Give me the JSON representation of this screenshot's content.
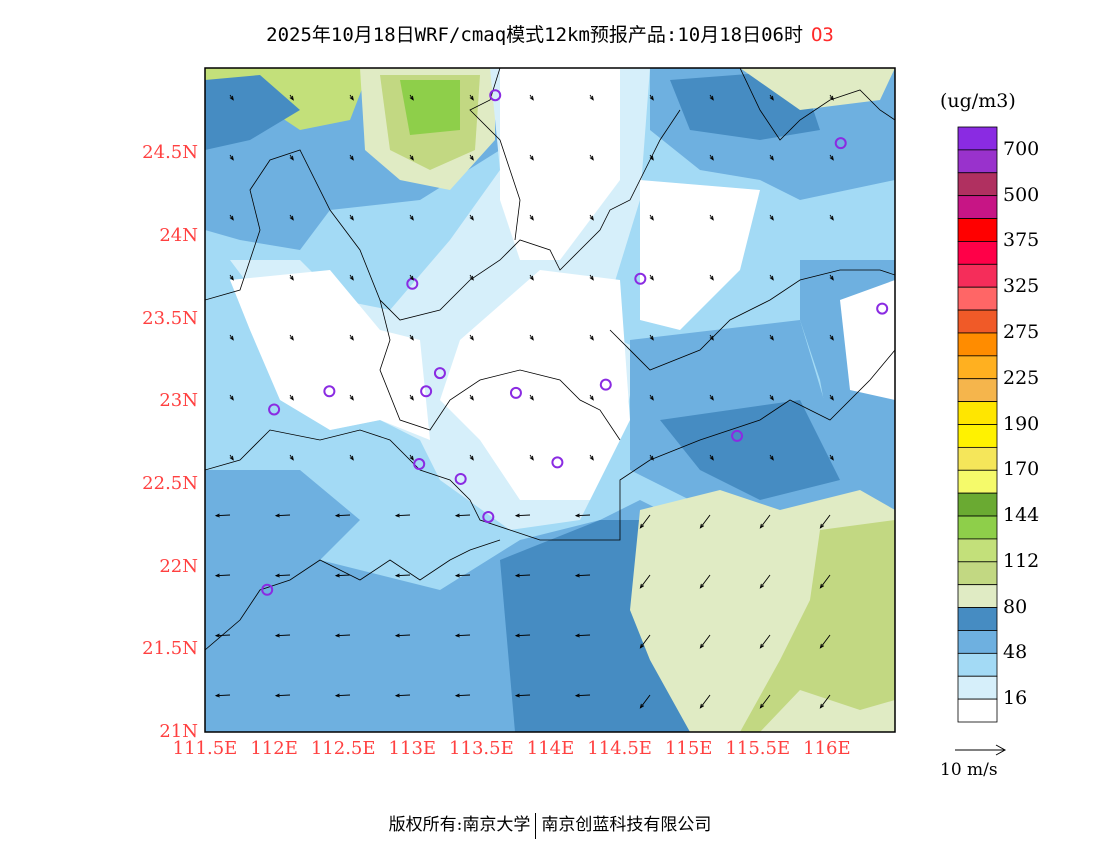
{
  "title": {
    "text": "2025年10月18日WRF/cmaq模式12km预报产品:10月18日06时",
    "species": "O3"
  },
  "colorbar": {
    "unit": "(ug/m3)",
    "colors": [
      "#8a2be2",
      "#9932cc",
      "#b03060",
      "#c71585",
      "#ff0000",
      "#ff0048",
      "#f52d5a",
      "#ff6666",
      "#f05a28",
      "#ff8c00",
      "#ffb020",
      "#f5b54c",
      "#ffe600",
      "#fff200",
      "#f5e65a",
      "#f5fa6a",
      "#6aaa32",
      "#8ecf4a",
      "#c3e07a",
      "#c2d882",
      "#e0ebc4",
      "#468cc2",
      "#6eb0e0",
      "#a3daf5",
      "#d6effa",
      "#ffffff"
    ],
    "labels": [
      "700",
      "500",
      "375",
      "325",
      "275",
      "225",
      "190",
      "170",
      "144",
      "112",
      "80",
      "48",
      "16"
    ]
  },
  "axes": {
    "x_labels": [
      "111.5E",
      "112E",
      "112.5E",
      "113E",
      "113.5E",
      "114E",
      "114.5E",
      "115E",
      "115.5E",
      "116E"
    ],
    "y_labels": [
      "24.5N",
      "24N",
      "23.5N",
      "23N",
      "22.5N",
      "22N",
      "21.5N",
      "21N"
    ]
  },
  "wind_legend": {
    "label": "10 m/s"
  },
  "footer": {
    "left": "版权所有:南京大学",
    "right": "南京创蓝科技有限公司"
  },
  "stations": [
    [
      112.0,
      22.95
    ],
    [
      112.4,
      23.06
    ],
    [
      113.0,
      23.71
    ],
    [
      113.1,
      23.06
    ],
    [
      113.2,
      23.17
    ],
    [
      113.6,
      24.85
    ],
    [
      113.75,
      23.05
    ],
    [
      114.4,
      23.1
    ],
    [
      113.05,
      22.62
    ],
    [
      113.35,
      22.53
    ],
    [
      113.55,
      22.3
    ],
    [
      114.05,
      22.63
    ],
    [
      115.35,
      22.79
    ],
    [
      111.95,
      21.86
    ],
    [
      116.1,
      24.56
    ],
    [
      116.4,
      23.56
    ],
    [
      114.65,
      23.74
    ]
  ]
}
